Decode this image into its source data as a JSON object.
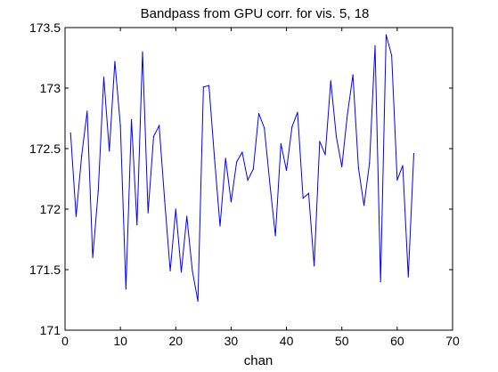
{
  "chart_data": {
    "type": "line",
    "title": "Bandpass from GPU corr. for vis. 5, 18",
    "xlabel": "chan",
    "ylabel": "",
    "xlim": [
      0,
      70
    ],
    "ylim": [
      171,
      173.5
    ],
    "xticks": [
      0,
      10,
      20,
      30,
      40,
      50,
      60,
      70
    ],
    "xtick_labels": [
      "0",
      "10",
      "20",
      "30",
      "40",
      "50",
      "60",
      "70"
    ],
    "yticks": [
      171,
      171.5,
      172,
      172.5,
      173,
      173.5
    ],
    "ytick_labels": [
      "171",
      "171.5",
      "172",
      "172.5",
      "173",
      "173.5"
    ],
    "grid": false,
    "legend": "none",
    "line_color": "#0000ff",
    "series": [
      {
        "x": [
          1,
          2,
          3,
          4,
          5,
          6,
          7,
          8,
          9,
          10,
          11,
          12,
          13,
          14,
          15,
          16,
          17,
          18,
          19,
          20,
          21,
          22,
          23,
          24,
          25,
          26,
          27,
          28,
          29,
          30,
          31,
          32,
          33,
          34,
          35,
          36,
          37,
          38,
          39,
          40,
          41,
          42,
          43,
          44,
          45,
          46,
          47,
          48,
          49,
          50,
          51,
          52,
          53,
          54,
          55,
          56,
          57,
          58,
          59,
          60,
          61,
          62,
          63
        ],
        "values": [
          172.63,
          171.94,
          172.44,
          172.81,
          171.6,
          172.15,
          173.09,
          172.48,
          173.22,
          172.69,
          171.34,
          172.74,
          171.87,
          173.3,
          171.97,
          172.6,
          172.69,
          172.07,
          171.49,
          172.0,
          171.48,
          171.94,
          171.49,
          171.24,
          173.01,
          173.02,
          172.42,
          171.86,
          172.42,
          172.06,
          172.39,
          172.47,
          172.24,
          172.33,
          172.79,
          172.67,
          172.21,
          171.78,
          172.54,
          172.32,
          172.68,
          172.8,
          172.09,
          172.13,
          171.53,
          172.56,
          172.45,
          173.06,
          172.6,
          172.35,
          172.78,
          173.11,
          172.34,
          172.03,
          172.38,
          173.35,
          171.4,
          173.44,
          173.27,
          172.24,
          172.36,
          171.44,
          172.46
        ]
      }
    ]
  }
}
